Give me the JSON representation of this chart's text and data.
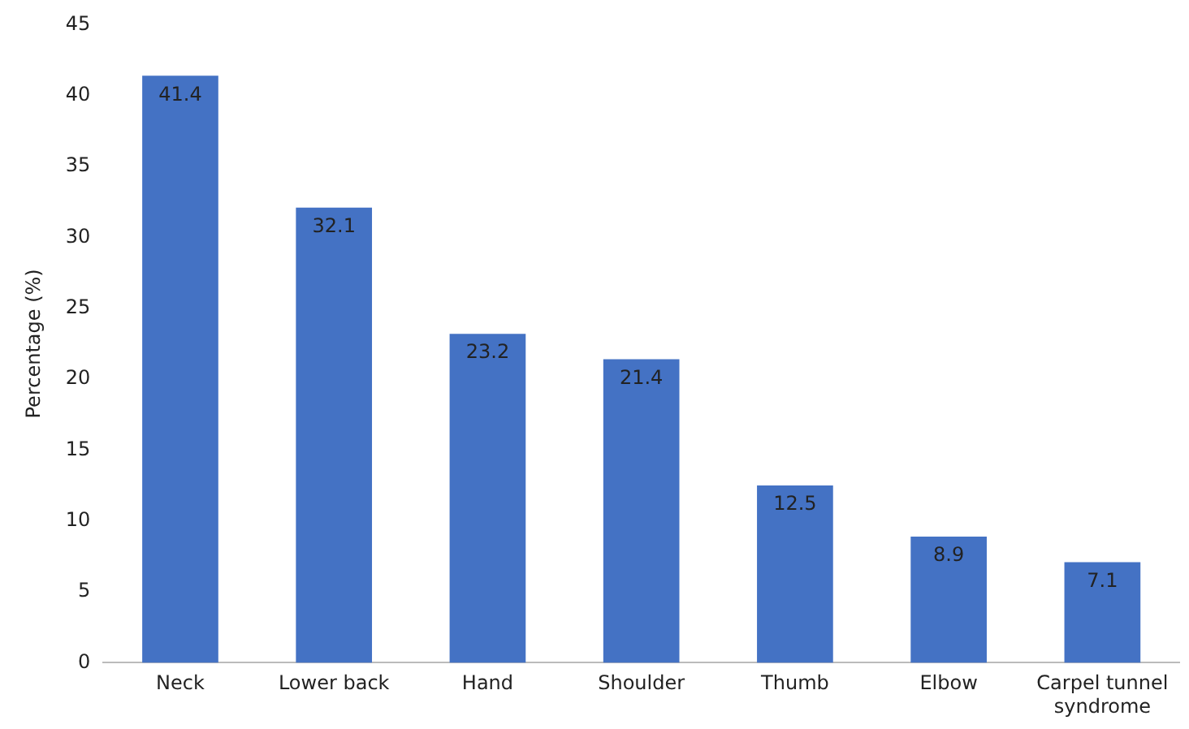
{
  "chart_data": {
    "type": "bar",
    "ylabel": "Percentage (%)",
    "categories": [
      "Neck",
      "Lower back",
      "Hand",
      "Shoulder",
      "Thumb",
      "Elbow",
      "Carpel tunnel syndrome"
    ],
    "values": [
      41.4,
      32.1,
      23.2,
      21.4,
      12.5,
      8.9,
      7.1
    ],
    "color": "#4472c4",
    "ylim": [
      0,
      45
    ],
    "yticks": [
      0,
      5,
      10,
      15,
      20,
      25,
      30,
      35,
      40,
      45
    ],
    "grid": false,
    "data_labels": true,
    "legend": false
  }
}
